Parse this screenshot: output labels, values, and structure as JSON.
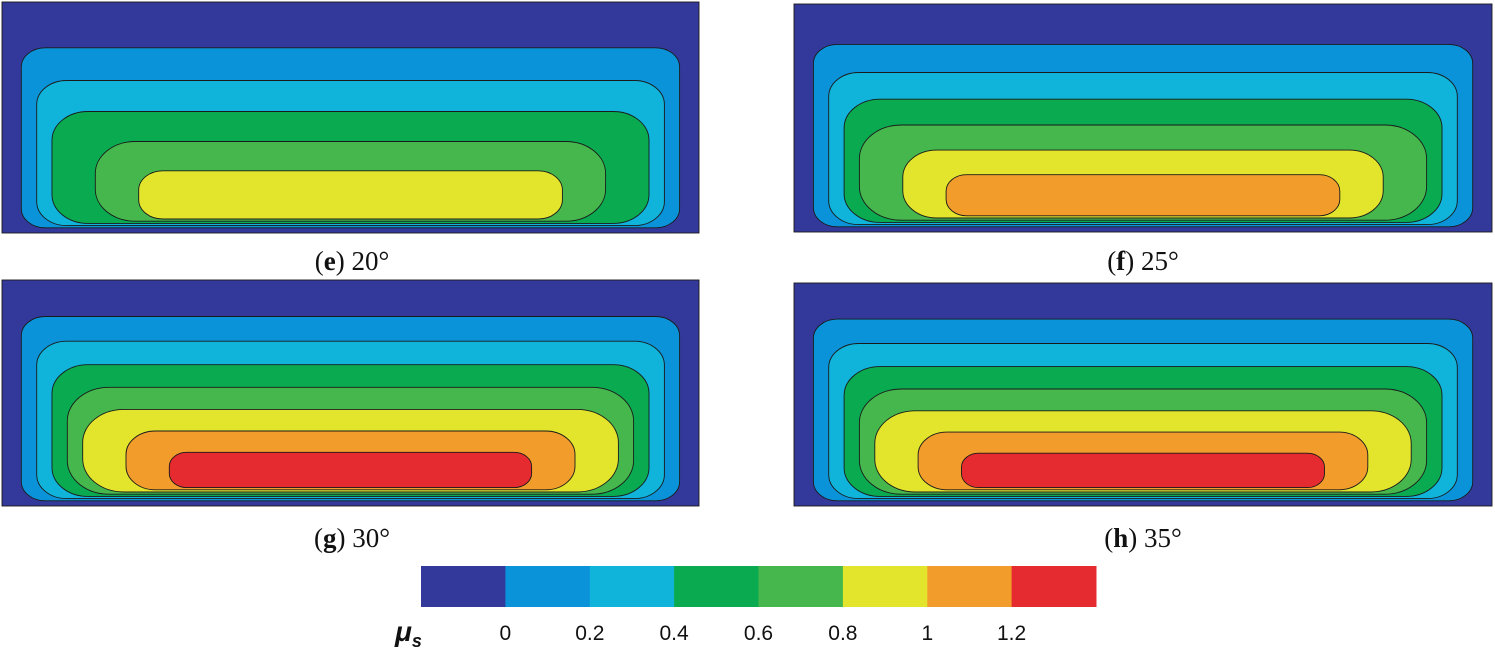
{
  "legend": {
    "symbol": "μ",
    "subscript": "s",
    "ticks": [
      "0",
      "0.2",
      "0.4",
      "0.6",
      "0.8",
      "1",
      "1.2"
    ],
    "colors": [
      "#33399a",
      "#0a93d9",
      "#10b3d9",
      "#0aab50",
      "#45b74d",
      "#e3e52c",
      "#f29c2c",
      "#e52a30"
    ]
  },
  "panels": [
    {
      "letter": "e",
      "angle": "20°",
      "levels": 6
    },
    {
      "letter": "f",
      "angle": "25°",
      "levels": 7
    },
    {
      "letter": "g",
      "angle": "30°",
      "levels": 8
    },
    {
      "letter": "h",
      "angle": "35°",
      "levels": 8
    }
  ]
}
